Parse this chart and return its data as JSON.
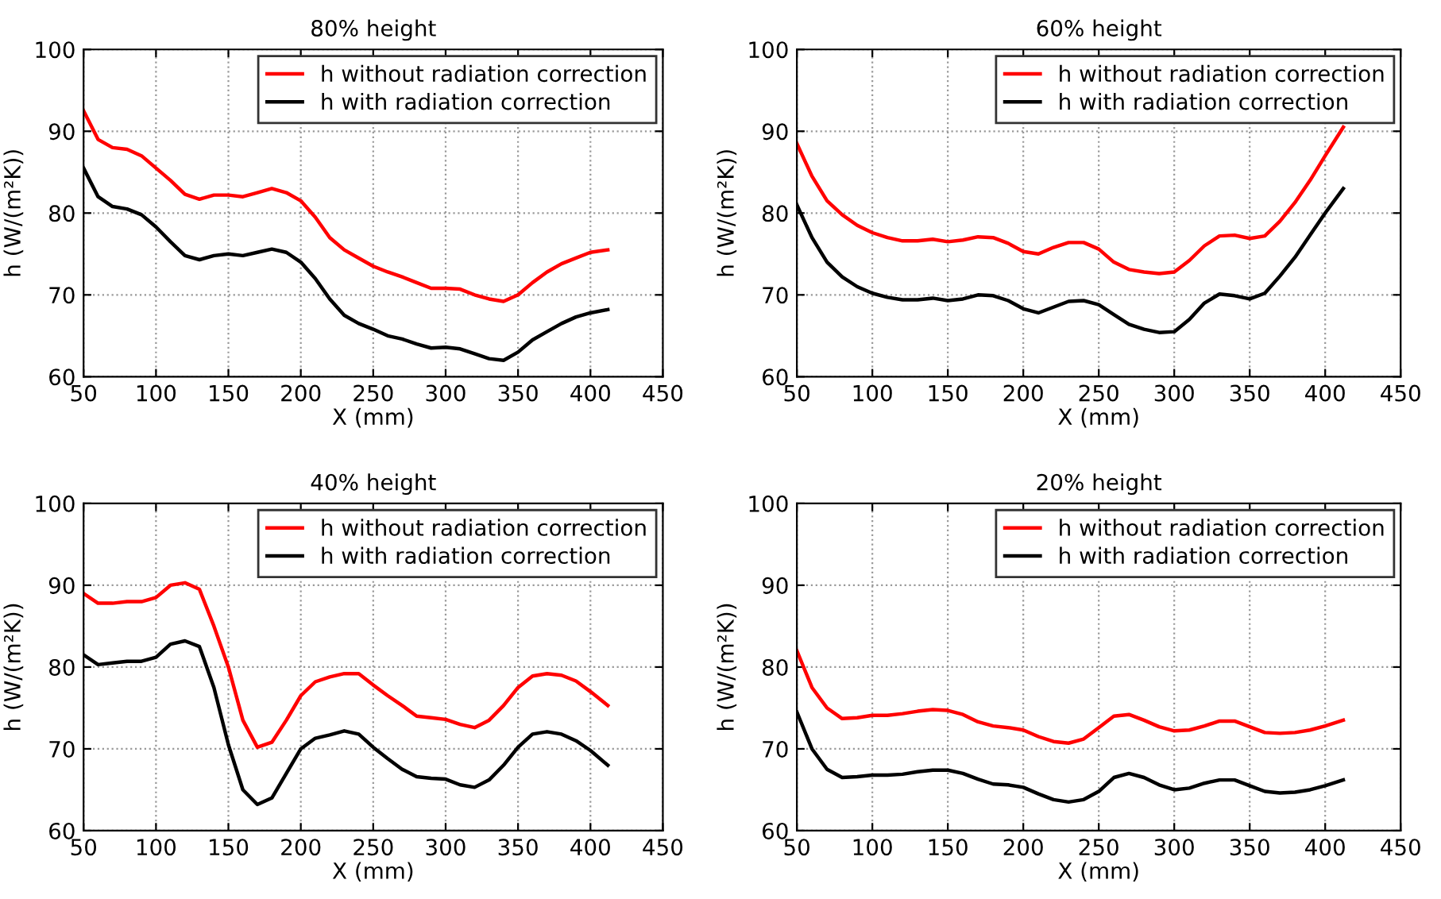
{
  "chart_data": [
    {
      "type": "line",
      "title": "80% height",
      "xlabel": "X (mm)",
      "ylabel": "h (W/(m²K))",
      "xlim": [
        50,
        450
      ],
      "ylim": [
        60,
        100
      ],
      "xticks": [
        50,
        100,
        150,
        200,
        250,
        300,
        350,
        400,
        450
      ],
      "yticks": [
        60,
        70,
        80,
        90,
        100
      ],
      "grid": true,
      "legend": "top right",
      "line_style": "solid",
      "x": [
        50,
        60,
        70,
        80,
        90,
        100,
        110,
        120,
        130,
        140,
        150,
        160,
        170,
        180,
        190,
        200,
        210,
        220,
        230,
        240,
        250,
        260,
        270,
        280,
        290,
        300,
        310,
        320,
        330,
        340,
        350,
        360,
        370,
        380,
        390,
        400,
        412
      ],
      "series": [
        {
          "name": "h without radiation correction",
          "color": "#ff0000",
          "values": [
            92.5,
            89,
            88,
            87.8,
            87,
            85.5,
            84,
            82.3,
            81.7,
            82.2,
            82.2,
            82,
            82.5,
            83,
            82.5,
            81.5,
            79.5,
            77,
            75.5,
            74.5,
            73.5,
            72.8,
            72.2,
            71.5,
            70.8,
            70.8,
            70.7,
            70,
            69.5,
            69.2,
            70,
            71.5,
            72.8,
            73.8,
            74.5,
            75.2,
            75.5
          ]
        },
        {
          "name": "h with radiation correction",
          "color": "#000000",
          "values": [
            85.5,
            82,
            80.8,
            80.5,
            79.8,
            78.3,
            76.5,
            74.8,
            74.3,
            74.8,
            75,
            74.8,
            75.2,
            75.6,
            75.2,
            74,
            72,
            69.5,
            67.5,
            66.5,
            65.8,
            65,
            64.6,
            64,
            63.5,
            63.6,
            63.4,
            62.8,
            62.2,
            62,
            63,
            64.5,
            65.5,
            66.5,
            67.3,
            67.8,
            68.2
          ]
        }
      ]
    },
    {
      "type": "line",
      "title": "60% height",
      "xlabel": "X (mm)",
      "ylabel": "h (W/(m²K))",
      "xlim": [
        50,
        450
      ],
      "ylim": [
        60,
        100
      ],
      "xticks": [
        50,
        100,
        150,
        200,
        250,
        300,
        350,
        400,
        450
      ],
      "yticks": [
        60,
        70,
        80,
        90,
        100
      ],
      "grid": true,
      "legend": "top right",
      "line_style": "solid",
      "x": [
        50,
        60,
        70,
        80,
        90,
        100,
        110,
        120,
        130,
        140,
        150,
        160,
        170,
        180,
        190,
        200,
        210,
        220,
        230,
        240,
        250,
        260,
        270,
        280,
        290,
        300,
        310,
        320,
        330,
        340,
        350,
        360,
        370,
        380,
        390,
        400,
        412
      ],
      "series": [
        {
          "name": "h without radiation correction",
          "color": "#ff0000",
          "values": [
            88.5,
            84.5,
            81.5,
            79.8,
            78.5,
            77.6,
            77,
            76.6,
            76.6,
            76.8,
            76.5,
            76.7,
            77.1,
            77,
            76.3,
            75.3,
            75,
            75.8,
            76.4,
            76.4,
            75.6,
            74,
            73.1,
            72.8,
            72.6,
            72.8,
            74.2,
            76,
            77.2,
            77.3,
            76.9,
            77.2,
            79,
            81.3,
            84,
            87,
            90.5
          ]
        },
        {
          "name": "h with radiation correction",
          "color": "#000000",
          "values": [
            81,
            77,
            74,
            72.2,
            71,
            70.2,
            69.7,
            69.4,
            69.4,
            69.6,
            69.3,
            69.5,
            70,
            69.9,
            69.3,
            68.3,
            67.8,
            68.5,
            69.2,
            69.3,
            68.8,
            67.6,
            66.4,
            65.8,
            65.4,
            65.5,
            67,
            69,
            70.1,
            69.9,
            69.5,
            70.2,
            72.3,
            74.6,
            77.3,
            80,
            83
          ]
        }
      ]
    },
    {
      "type": "line",
      "title": "40% height",
      "xlabel": "X (mm)",
      "ylabel": "h (W/(m²K))",
      "xlim": [
        50,
        450
      ],
      "ylim": [
        60,
        100
      ],
      "xticks": [
        50,
        100,
        150,
        200,
        250,
        300,
        350,
        400,
        450
      ],
      "yticks": [
        60,
        70,
        80,
        90,
        100
      ],
      "grid": true,
      "legend": "top right",
      "line_style": "solid",
      "x": [
        50,
        60,
        70,
        80,
        90,
        100,
        110,
        120,
        130,
        140,
        150,
        160,
        170,
        180,
        190,
        200,
        210,
        220,
        230,
        240,
        250,
        260,
        270,
        280,
        290,
        300,
        310,
        320,
        330,
        340,
        350,
        360,
        370,
        380,
        390,
        400,
        412
      ],
      "series": [
        {
          "name": "h without radiation correction",
          "color": "#ff0000",
          "values": [
            89,
            87.8,
            87.8,
            88,
            88,
            88.5,
            90,
            90.3,
            89.5,
            85,
            80,
            73.5,
            70.2,
            70.8,
            73.5,
            76.5,
            78.2,
            78.8,
            79.2,
            79.2,
            77.8,
            76.5,
            75.3,
            74,
            73.8,
            73.6,
            73,
            72.6,
            73.5,
            75.3,
            77.5,
            78.9,
            79.2,
            79,
            78.3,
            77,
            75.3
          ]
        },
        {
          "name": "h with radiation correction",
          "color": "#000000",
          "values": [
            81.5,
            80.3,
            80.5,
            80.7,
            80.7,
            81.2,
            82.8,
            83.2,
            82.5,
            77.5,
            70.5,
            65,
            63.2,
            64,
            67,
            70,
            71.3,
            71.7,
            72.2,
            71.8,
            70.2,
            68.8,
            67.5,
            66.6,
            66.4,
            66.3,
            65.6,
            65.3,
            66.2,
            68,
            70.2,
            71.8,
            72.1,
            71.8,
            71,
            69.8,
            68
          ]
        }
      ]
    },
    {
      "type": "line",
      "title": "20% height",
      "xlabel": "X (mm)",
      "ylabel": "h (W/(m²K))",
      "xlim": [
        50,
        450
      ],
      "ylim": [
        60,
        100
      ],
      "xticks": [
        50,
        100,
        150,
        200,
        250,
        300,
        350,
        400,
        450
      ],
      "yticks": [
        60,
        70,
        80,
        90,
        100
      ],
      "grid": true,
      "legend": "top right",
      "line_style": "solid",
      "x": [
        50,
        60,
        70,
        80,
        90,
        100,
        110,
        120,
        130,
        140,
        150,
        160,
        170,
        180,
        190,
        200,
        210,
        220,
        230,
        240,
        250,
        260,
        270,
        280,
        290,
        300,
        310,
        320,
        330,
        340,
        350,
        360,
        370,
        380,
        390,
        400,
        412
      ],
      "series": [
        {
          "name": "h without radiation correction",
          "color": "#ff0000",
          "values": [
            82,
            77.5,
            75,
            73.7,
            73.8,
            74.1,
            74.1,
            74.3,
            74.6,
            74.8,
            74.7,
            74.2,
            73.3,
            72.8,
            72.6,
            72.3,
            71.5,
            70.9,
            70.7,
            71.2,
            72.6,
            74,
            74.2,
            73.5,
            72.7,
            72.2,
            72.3,
            72.8,
            73.4,
            73.4,
            72.7,
            72,
            71.9,
            72,
            72.3,
            72.8,
            73.5
          ]
        },
        {
          "name": "h with radiation correction",
          "color": "#000000",
          "values": [
            74.5,
            70,
            67.5,
            66.5,
            66.6,
            66.8,
            66.8,
            66.9,
            67.2,
            67.4,
            67.4,
            67,
            66.3,
            65.7,
            65.6,
            65.3,
            64.5,
            63.8,
            63.5,
            63.8,
            64.8,
            66.5,
            67,
            66.5,
            65.6,
            65,
            65.2,
            65.8,
            66.2,
            66.2,
            65.5,
            64.8,
            64.6,
            64.7,
            65,
            65.5,
            66.2
          ]
        }
      ]
    }
  ]
}
